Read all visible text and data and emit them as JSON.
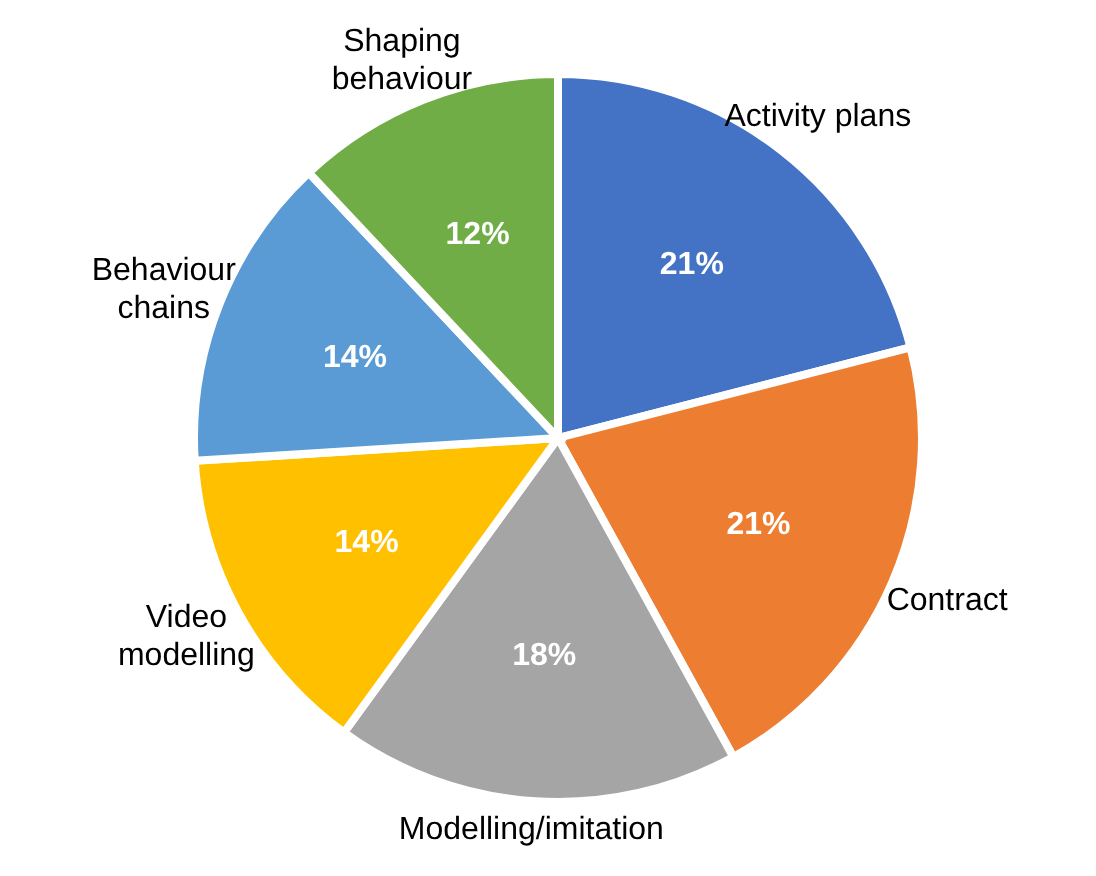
{
  "chart_data": {
    "type": "pie",
    "categories": [
      "Activity plans",
      "Contract",
      "Modelling/imitation",
      "Video modelling",
      "Behaviour chains",
      "Shaping behaviour"
    ],
    "values": [
      21,
      21,
      18,
      14,
      14,
      12
    ],
    "colors": [
      "#4472c4",
      "#ed7d31",
      "#a5a5a5",
      "#ffc000",
      "#5b9bd5",
      "#70ad47"
    ],
    "value_labels": [
      "21%",
      "21%",
      "18%",
      "14%",
      "14%",
      "12%"
    ],
    "legend": false
  }
}
